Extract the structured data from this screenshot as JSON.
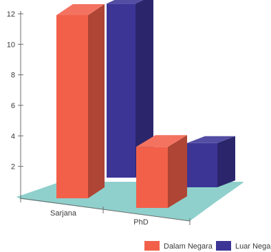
{
  "chart_data": {
    "type": "bar",
    "title": "",
    "xlabel": "",
    "ylabel": "",
    "ylim": [
      0,
      12
    ],
    "yticks": [
      2,
      4,
      6,
      8,
      10,
      12
    ],
    "categories": [
      "Sarjana",
      "PhD"
    ],
    "series": [
      {
        "name": "Dalam Negara",
        "values": [
          12,
          4
        ],
        "color": "#f2604a"
      },
      {
        "name": "Luar Negara",
        "values": [
          11.4,
          2.9
        ],
        "color": "#3c3596"
      }
    ],
    "floor_color": "#8fd0cc",
    "legend": "bottom-right",
    "grid": false
  }
}
